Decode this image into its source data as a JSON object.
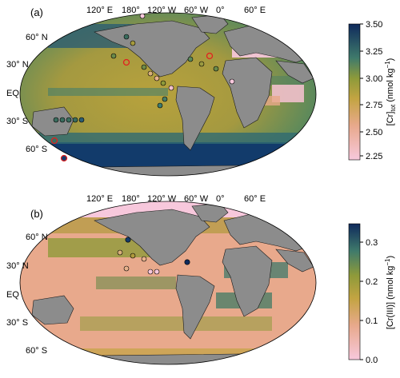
{
  "panels": [
    {
      "label": "(a)",
      "lon_labels": [
        "120° E",
        "180°",
        "120° W",
        "60° W",
        "0°",
        "60° E"
      ],
      "lat_labels": [
        "60° N",
        "30° N",
        "EQ",
        "30° S",
        "60° S"
      ],
      "colorbar": {
        "label_main": "[Cr]",
        "label_sub": "tot",
        "label_unit": " (nmol kg",
        "label_exp": "−1",
        "label_close": ")",
        "ticks": [
          "3.50",
          "3.25",
          "3.00",
          "2.75",
          "2.50",
          "2.25"
        ],
        "range": [
          2.2,
          3.5
        ]
      }
    },
    {
      "label": "(b)",
      "lon_labels": [
        "120° E",
        "180°",
        "120° W",
        "60° W",
        "0°",
        "60° E"
      ],
      "lat_labels": [
        "60° N",
        "30° N",
        "EQ",
        "30° S",
        "60° S"
      ],
      "colorbar": {
        "label_main": "[Cr(III)] (nmol kg",
        "label_exp": "−1",
        "label_close": ")",
        "ticks": [
          "0.3",
          "0.2",
          "0.1",
          "0.0"
        ],
        "range": [
          0.0,
          0.35
        ]
      }
    }
  ],
  "colors": {
    "ocean_low": "#f7c8dc",
    "ocean_mid": "#b7a93a",
    "ocean_high": "#0f2a5c",
    "land": "#8c8c8c",
    "highlight_ring": "#e02020"
  }
}
